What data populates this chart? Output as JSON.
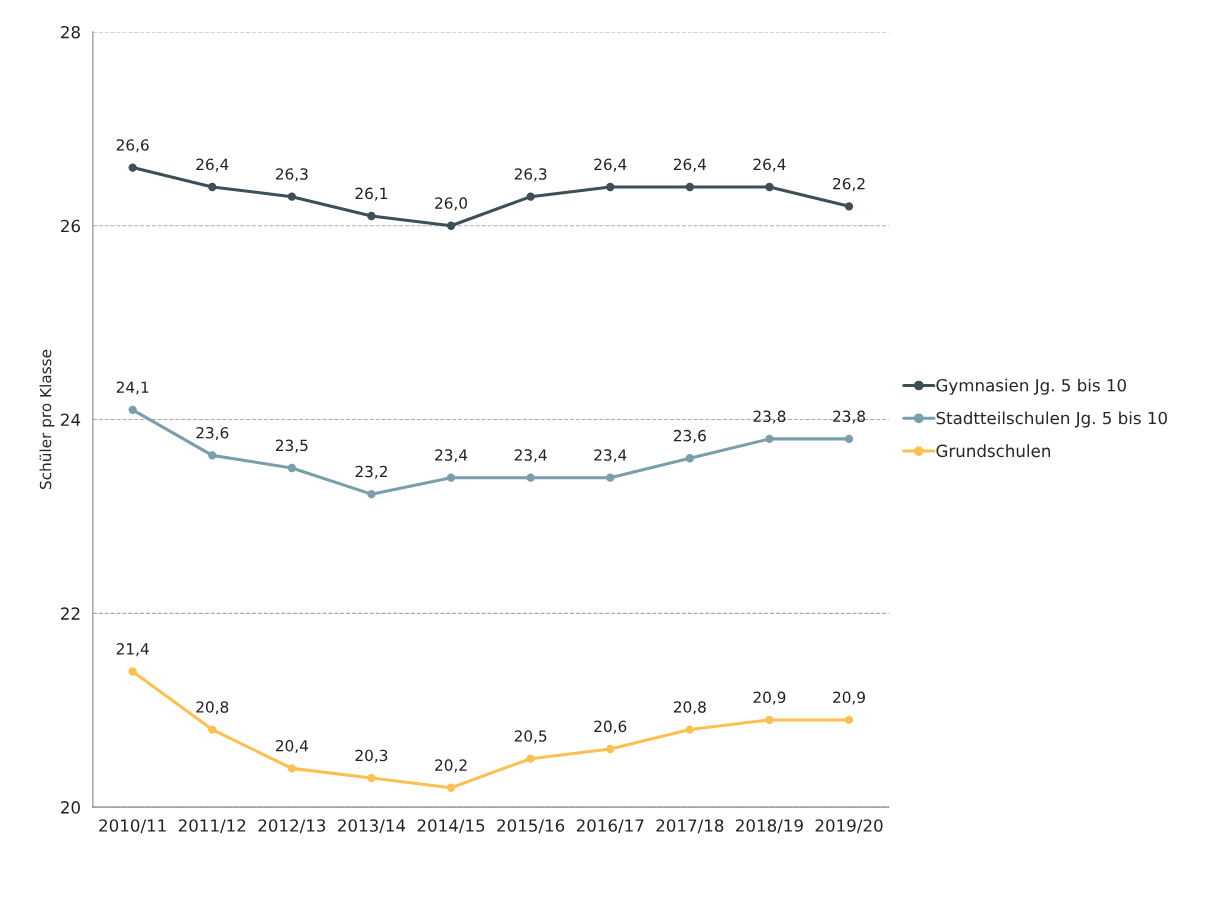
{
  "chart_data": {
    "type": "line",
    "ylabel": "Schüler pro Klasse",
    "categories": [
      "2010/11",
      "2011/12",
      "2012/13",
      "2013/14",
      "2014/15",
      "2015/16",
      "2016/17",
      "2017/18",
      "2018/19",
      "2019/20"
    ],
    "series": [
      {
        "name": "Gymnasien Jg. 5 bis 10",
        "color": "#3d4f57",
        "values": [
          26.6,
          26.4,
          26.3,
          26.1,
          26.0,
          26.3,
          26.4,
          26.4,
          26.4,
          26.2
        ],
        "value_labels": [
          "26,6",
          "26,4",
          "26,3",
          "26,1",
          "26,0",
          "26,3",
          "26,4",
          "26,4",
          "26,4",
          "26,2"
        ]
      },
      {
        "name": "Stadtteilschulen Jg. 5 bis 10",
        "color": "#7a9eab",
        "values": [
          24.1,
          23.63,
          23.5,
          23.23,
          23.4,
          23.4,
          23.4,
          23.6,
          23.8,
          23.8
        ],
        "value_labels": [
          "24,1",
          "23,6",
          "23,5",
          "23,2",
          "23,4",
          "23,4",
          "23,4",
          "23,6",
          "23,8",
          "23,8"
        ]
      },
      {
        "name": "Grundschulen",
        "color": "#fbc04f",
        "values": [
          21.4,
          20.8,
          20.4,
          20.3,
          20.2,
          20.5,
          20.6,
          20.8,
          20.9,
          20.9
        ],
        "value_labels": [
          "21,4",
          "20,8",
          "20,4",
          "20,3",
          "20,2",
          "20,5",
          "20,6",
          "20,8",
          "20,9",
          "20,9"
        ]
      }
    ],
    "ylim": [
      20,
      28
    ],
    "yticks": [
      20,
      22,
      24,
      26,
      28
    ],
    "grid": "y",
    "legend": "right",
    "marker": "circle",
    "line_style": "solid"
  }
}
